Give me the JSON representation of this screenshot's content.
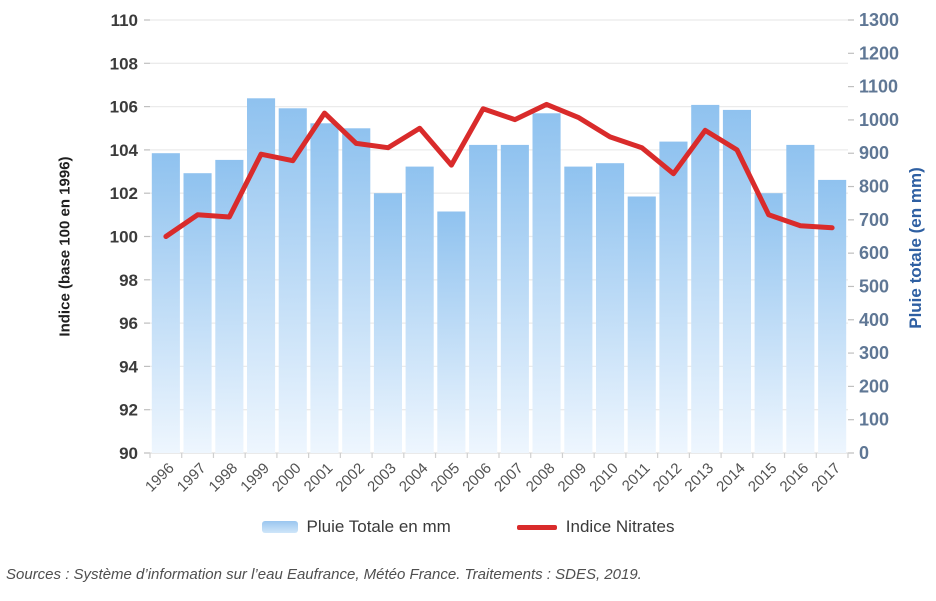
{
  "figure": {
    "source_text": "Sources : Système d’information sur l’eau Eaufrance, Météo France. Traitements : SDES, 2019."
  },
  "legend": {
    "items": [
      {
        "label": "Pluie Totale en mm",
        "swatch": "bar",
        "color": "#9ac6ef"
      },
      {
        "label": "Indice Nitrates",
        "swatch": "line",
        "color": "#d92b2b"
      }
    ]
  },
  "chart_data": {
    "type": "bar",
    "subtype": "combo-bar-line-dual-axis",
    "categories": [
      "1996",
      "1997",
      "1998",
      "1999",
      "2000",
      "2001",
      "2002",
      "2003",
      "2004",
      "2005",
      "2006",
      "2007",
      "2008",
      "2009",
      "2010",
      "2011",
      "2012",
      "2013",
      "2014",
      "2015",
      "2016",
      "2017"
    ],
    "series": [
      {
        "name": "Pluie Totale en mm",
        "type": "bar",
        "axis": "right",
        "color_top": "#8fc2ef",
        "color_bottom": "#eef6fe",
        "values": [
          900,
          840,
          880,
          1065,
          1035,
          990,
          975,
          780,
          860,
          725,
          925,
          925,
          1020,
          860,
          870,
          770,
          935,
          1045,
          1030,
          780,
          925,
          820
        ]
      },
      {
        "name": "Indice Nitrates",
        "type": "line",
        "axis": "left",
        "color": "#d92b2b",
        "values": [
          100.0,
          101.0,
          100.9,
          103.8,
          103.5,
          105.7,
          104.3,
          104.1,
          105.0,
          103.3,
          105.9,
          105.4,
          106.1,
          105.5,
          104.6,
          104.1,
          102.9,
          104.9,
          104.0,
          101.0,
          100.5,
          100.4
        ]
      }
    ],
    "left_axis": {
      "title": "Indice (base 100 en 1996)",
      "min": 90,
      "max": 110,
      "step": 2
    },
    "right_axis": {
      "title": "Pluie totale (en mm)",
      "min": 0,
      "max": 1300,
      "step": 100
    },
    "grid": "horizontal",
    "legend_position": "bottom",
    "xlabel": "",
    "ylabel_left": "Indice (base 100 en 1996)",
    "ylabel_right": "Pluie totale (en mm)"
  }
}
